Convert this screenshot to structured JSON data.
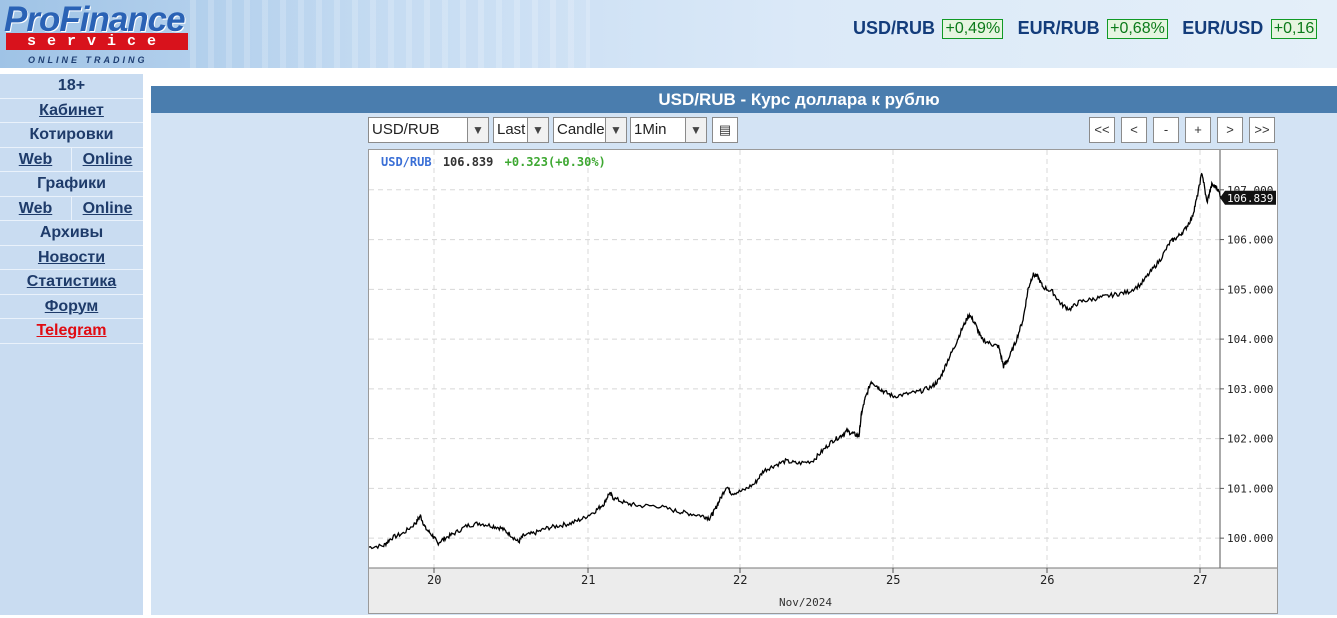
{
  "header": {
    "logo": {
      "brand": "ProFinance",
      "sub": "service",
      "tagline": "ONLINE TRADING"
    },
    "tickers": [
      {
        "pair": "USD/RUB",
        "change": "+0,49%"
      },
      {
        "pair": "EUR/RUB",
        "change": "+0,68%"
      },
      {
        "pair": "EUR/USD",
        "change": "+0,16"
      }
    ]
  },
  "sidebar": {
    "items": [
      {
        "label": "18+",
        "type": "text"
      },
      {
        "label": "Кабинет",
        "type": "link"
      },
      {
        "label": "Котировки",
        "type": "text"
      },
      {
        "type": "split",
        "left": "Web",
        "right": "Online"
      },
      {
        "label": "Графики",
        "type": "text"
      },
      {
        "type": "split",
        "left": "Web",
        "right": "Online"
      },
      {
        "label": "Архивы",
        "type": "text"
      },
      {
        "label": "Новости",
        "type": "link"
      },
      {
        "label": "Статистика",
        "type": "link"
      },
      {
        "label": "Форум",
        "type": "link"
      },
      {
        "label": "Telegram",
        "type": "link"
      }
    ]
  },
  "main": {
    "title": "USD/RUB - Курс доллара к рублю",
    "controls": {
      "symbol": "USD/RUB",
      "price_type": "Last",
      "chart_style": "Candle",
      "interval": "1Min",
      "nav_buttons": [
        "<<",
        "<",
        "-",
        "+",
        ">",
        ">>"
      ]
    }
  },
  "chart_data": {
    "type": "line",
    "legend": {
      "symbol": "USD/RUB",
      "last": "106.839",
      "change": "+0.323(+0.30%)"
    },
    "last_price_label": "106.839",
    "x_month_label": "Nov/2024",
    "x_ticks": [
      "20",
      "21",
      "22",
      "25",
      "26",
      "27"
    ],
    "y_ticks": [
      "100.000",
      "101.000",
      "102.000",
      "103.000",
      "104.000",
      "105.000",
      "106.000",
      "107.000"
    ],
    "ylim": [
      99.4,
      107.8
    ],
    "grid": true,
    "colors": {
      "line": "#000000",
      "symbol": "#3a6fd6",
      "change": "#3ea832",
      "last_label_bg": "#111111"
    },
    "points": [
      [
        0,
        99.82
      ],
      [
        0.12,
        99.85
      ],
      [
        0.18,
        100.0
      ],
      [
        0.28,
        100.1
      ],
      [
        0.38,
        100.3
      ],
      [
        0.42,
        100.45
      ],
      [
        0.46,
        100.2
      ],
      [
        0.52,
        100.05
      ],
      [
        0.56,
        99.9
      ],
      [
        0.62,
        100.0
      ],
      [
        0.7,
        100.1
      ],
      [
        0.8,
        100.25
      ],
      [
        0.9,
        100.3
      ],
      [
        1.0,
        100.25
      ],
      [
        1.08,
        100.2
      ],
      [
        1.15,
        100.08
      ],
      [
        1.22,
        99.92
      ],
      [
        1.26,
        100.05
      ],
      [
        1.35,
        100.1
      ],
      [
        1.45,
        100.2
      ],
      [
        1.55,
        100.25
      ],
      [
        1.65,
        100.3
      ],
      [
        1.75,
        100.4
      ],
      [
        1.85,
        100.55
      ],
      [
        1.92,
        100.7
      ],
      [
        1.96,
        100.9
      ],
      [
        2.0,
        100.8
      ],
      [
        2.1,
        100.7
      ],
      [
        2.2,
        100.65
      ],
      [
        2.35,
        100.65
      ],
      [
        2.5,
        100.55
      ],
      [
        2.6,
        100.5
      ],
      [
        2.72,
        100.45
      ],
      [
        2.78,
        100.4
      ],
      [
        2.82,
        100.55
      ],
      [
        2.86,
        100.75
      ],
      [
        2.92,
        101.05
      ],
      [
        2.96,
        100.9
      ],
      [
        3.05,
        100.95
      ],
      [
        3.15,
        101.1
      ],
      [
        3.22,
        101.35
      ],
      [
        3.3,
        101.45
      ],
      [
        3.4,
        101.55
      ],
      [
        3.5,
        101.5
      ],
      [
        3.62,
        101.55
      ],
      [
        3.7,
        101.75
      ],
      [
        3.78,
        101.95
      ],
      [
        3.85,
        102.05
      ],
      [
        3.9,
        102.15
      ],
      [
        3.95,
        102.1
      ],
      [
        4.0,
        102.05
      ],
      [
        4.02,
        102.5
      ],
      [
        4.05,
        102.8
      ],
      [
        4.1,
        103.15
      ],
      [
        4.15,
        103.05
      ],
      [
        4.2,
        102.95
      ],
      [
        4.28,
        102.85
      ],
      [
        4.4,
        102.9
      ],
      [
        4.5,
        102.95
      ],
      [
        4.6,
        103.05
      ],
      [
        4.66,
        103.2
      ],
      [
        4.72,
        103.55
      ],
      [
        4.78,
        103.85
      ],
      [
        4.84,
        104.2
      ],
      [
        4.9,
        104.5
      ],
      [
        4.95,
        104.3
      ],
      [
        5.0,
        104.0
      ],
      [
        5.08,
        103.9
      ],
      [
        5.14,
        103.85
      ],
      [
        5.18,
        103.45
      ],
      [
        5.22,
        103.6
      ],
      [
        5.28,
        103.95
      ],
      [
        5.34,
        104.4
      ],
      [
        5.38,
        105.0
      ],
      [
        5.42,
        105.3
      ],
      [
        5.46,
        105.25
      ],
      [
        5.5,
        105.05
      ],
      [
        5.58,
        104.95
      ],
      [
        5.65,
        104.7
      ],
      [
        5.72,
        104.6
      ],
      [
        5.8,
        104.75
      ],
      [
        5.9,
        104.8
      ],
      [
        6.0,
        104.85
      ],
      [
        6.1,
        104.9
      ],
      [
        6.2,
        104.95
      ],
      [
        6.3,
        105.1
      ],
      [
        6.38,
        105.35
      ],
      [
        6.46,
        105.6
      ],
      [
        6.54,
        105.95
      ],
      [
        6.6,
        106.05
      ],
      [
        6.66,
        106.2
      ],
      [
        6.72,
        106.45
      ],
      [
        6.76,
        106.85
      ],
      [
        6.8,
        107.35
      ],
      [
        6.84,
        106.75
      ],
      [
        6.88,
        107.1
      ],
      [
        6.92,
        107.05
      ],
      [
        6.96,
        106.84
      ]
    ]
  }
}
